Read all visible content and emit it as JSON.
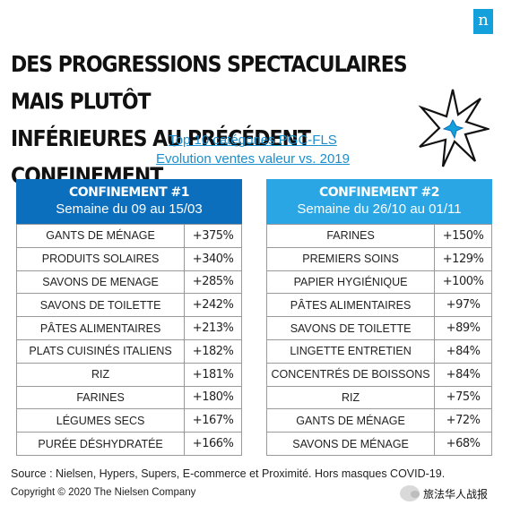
{
  "logo": {
    "letter": "n",
    "color": "#14a0db"
  },
  "headline": {
    "line1": "DES PROGRESSIONS SPECTACULAIRES MAIS PLUTÔT",
    "line2": "INFÉRIEURES AU PRÉCÉDENT CONFINEMENT"
  },
  "subtitle": {
    "line1": "Top 10 catégories PGC-FLS",
    "line2": "Evolution ventes valeur vs. 2019"
  },
  "confinement1": {
    "title": "CONFINEMENT #1",
    "period": "Semaine du 09 au 15/03",
    "header_color": "#0b6fbe",
    "rows": [
      {
        "category": "GANTS DE MÉNAGE",
        "value": "+375%"
      },
      {
        "category": "PRODUITS SOLAIRES",
        "value": "+340%"
      },
      {
        "category": "SAVONS DE MENAGE",
        "value": "+285%"
      },
      {
        "category": "SAVONS DE TOILETTE",
        "value": "+242%"
      },
      {
        "category": "PÂTES ALIMENTAIRES",
        "value": "+213%"
      },
      {
        "category": "PLATS CUISINÉS ITALIENS",
        "value": "+182%"
      },
      {
        "category": "RIZ",
        "value": "+181%"
      },
      {
        "category": "FARINES",
        "value": "+180%"
      },
      {
        "category": "LÉGUMES SECS",
        "value": "+167%"
      },
      {
        "category": "PURÉE DÉSHYDRATÉE",
        "value": "+166%"
      }
    ]
  },
  "confinement2": {
    "title": "CONFINEMENT #2",
    "period": "Semaine du 26/10 au 01/11",
    "header_color": "#2aa6e4",
    "rows": [
      {
        "category": "FARINES",
        "value": "+150%"
      },
      {
        "category": "PREMIERS SOINS",
        "value": "+129%"
      },
      {
        "category": "PAPIER HYGIÉNIQUE",
        "value": "+100%"
      },
      {
        "category": "PÂTES ALIMENTAIRES",
        "value": "+97%"
      },
      {
        "category": "SAVONS DE TOILETTE",
        "value": "+89%"
      },
      {
        "category": "LINGETTE ENTRETIEN",
        "value": "+84%"
      },
      {
        "category": "CONCENTRÉS DE BOISSONS",
        "value": "+84%"
      },
      {
        "category": "RIZ",
        "value": "+75%"
      },
      {
        "category": "GANTS DE MÉNAGE",
        "value": "+72%"
      },
      {
        "category": "SAVONS DE MÉNAGE",
        "value": "+68%"
      }
    ]
  },
  "footer": {
    "source": "Source : Nielsen, Hypers, Supers, E-commerce et Proximité. Hors masques COVID-19.",
    "copyright": "Copyright © 2020 The Nielsen Company"
  },
  "watermark": {
    "text": "旅法华人战报",
    "icon": "wechat-icon"
  },
  "decoration": {
    "icon": "starburst-icon",
    "accent": "#14a0db"
  }
}
